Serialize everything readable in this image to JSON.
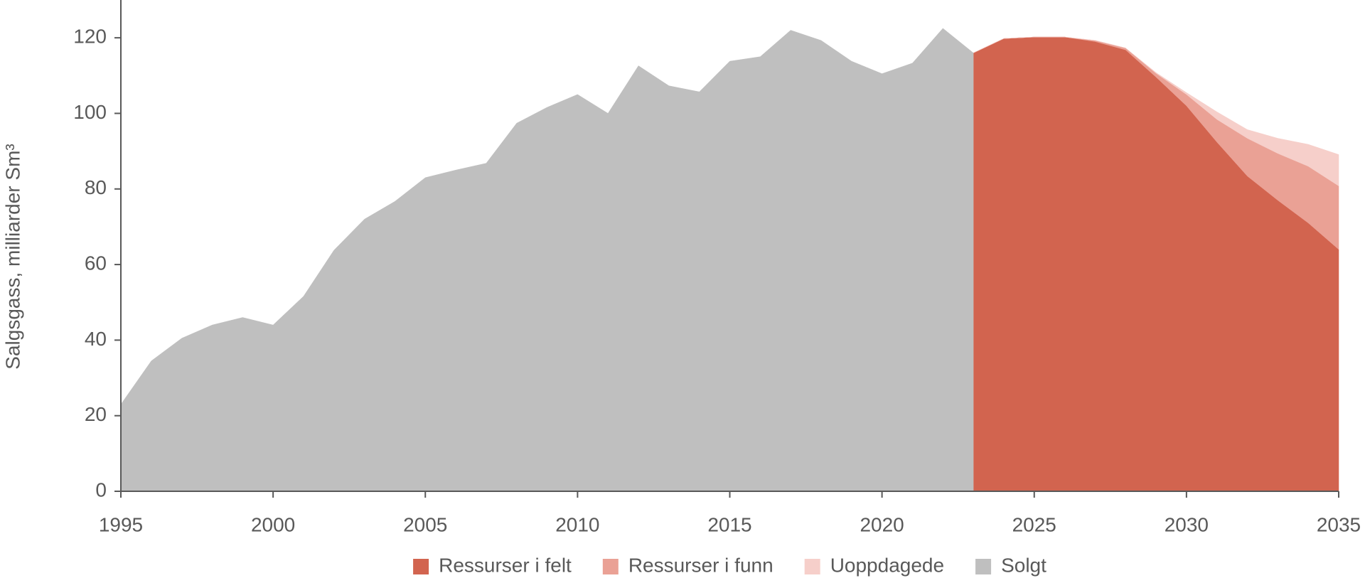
{
  "chart_data": {
    "type": "area",
    "y_label": "Salgsgass, milliarder Sm³",
    "x": [
      2023,
      2024,
      2025,
      2026,
      2027,
      2028,
      2029,
      2030,
      2031,
      2032,
      2033,
      2034,
      2035
    ],
    "series": [
      {
        "name": "Ressurser i felt",
        "color": "#d2644f",
        "values": [
          116,
          119.8,
          120.2,
          120.2,
          119,
          116.8,
          109.6,
          102,
          92.4,
          83.4,
          77,
          71,
          64
        ]
      },
      {
        "name": "Ressurser i funn",
        "color": "#eaa195",
        "values": [
          0,
          0,
          0,
          0,
          0.3,
          0.5,
          1,
          3,
          6,
          10,
          12.4,
          15,
          16.8
        ]
      },
      {
        "name": "Uoppdagede",
        "color": "#f6cfca",
        "values": [
          0,
          0,
          0,
          0,
          0,
          0,
          0.2,
          0.5,
          2,
          2.3,
          4,
          5.8,
          8.3
        ]
      },
      {
        "name": "Solgt",
        "color": "#bfbfbf",
        "x": [
          1995,
          1996,
          1997,
          1998,
          1999,
          2000,
          2001,
          2002,
          2003,
          2004,
          2005,
          2006,
          2007,
          2008,
          2009,
          2010,
          2011,
          2012,
          2013,
          2014,
          2015,
          2016,
          2017,
          2018,
          2019,
          2020,
          2021,
          2022,
          2023
        ],
        "values": [
          23,
          34.5,
          40.5,
          44,
          46,
          44,
          51.6,
          63.8,
          72,
          76.7,
          83,
          85,
          86.8,
          97.4,
          101.6,
          105,
          100,
          112.6,
          107.3,
          105.7,
          113.8,
          115,
          122,
          119.3,
          113.8,
          110.5,
          113.3,
          122.5,
          116
        ]
      }
    ],
    "xlim": [
      1995,
      2035
    ],
    "xticks": [
      1995,
      2000,
      2005,
      2010,
      2015,
      2020,
      2025,
      2030,
      2035
    ],
    "ylim": [
      0,
      130
    ],
    "yticks": [
      0,
      20,
      40,
      60,
      80,
      100,
      120
    ],
    "legend": "bottom"
  }
}
